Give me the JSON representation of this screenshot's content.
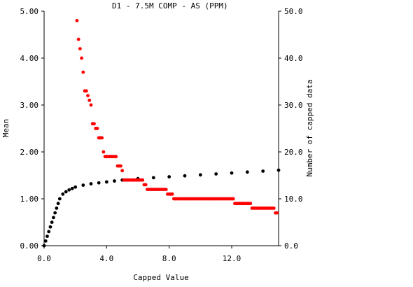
{
  "chart_data": {
    "type": "scatter",
    "title": "D1 - 7.5M COMP - AS (PPM)",
    "xlabel": "Capped Value",
    "ylabel": "Mean",
    "y2label": "Number of capped data",
    "xlim": [
      0,
      15
    ],
    "ylim": [
      0,
      5
    ],
    "y2lim": [
      0,
      50
    ],
    "xticks": [
      0,
      4,
      8,
      12
    ],
    "xtick_labels": [
      "0.0",
      "4.0",
      "8.0",
      "12.0"
    ],
    "yticks": [
      0,
      1,
      2,
      3,
      4,
      5
    ],
    "ytick_labels": [
      "0.00",
      "1.00",
      "2.00",
      "3.00",
      "4.00",
      "5.00"
    ],
    "y2ticks": [
      0,
      10,
      20,
      30,
      40,
      50
    ],
    "y2tick_labels": [
      "0.0",
      "10.0",
      "20.0",
      "30.0",
      "40.0",
      "50.0"
    ],
    "grid": false,
    "series": [
      {
        "axis": "left",
        "color": "#000000",
        "x": [
          0.0,
          0.1,
          0.2,
          0.3,
          0.4,
          0.5,
          0.6,
          0.7,
          0.8,
          0.9,
          1.0,
          1.2,
          1.4,
          1.6,
          1.8,
          2.0,
          2.5,
          3.0,
          3.5,
          4.0,
          4.5,
          5.0,
          6.0,
          7.0,
          8.0,
          9.0,
          10.0,
          11.0,
          12.0,
          13.0,
          14.0,
          15.0
        ],
        "y": [
          0.0,
          0.1,
          0.2,
          0.3,
          0.4,
          0.5,
          0.6,
          0.7,
          0.8,
          0.9,
          1.0,
          1.1,
          1.15,
          1.19,
          1.22,
          1.25,
          1.29,
          1.32,
          1.34,
          1.36,
          1.38,
          1.4,
          1.43,
          1.45,
          1.47,
          1.49,
          1.51,
          1.53,
          1.55,
          1.57,
          1.59,
          1.61
        ]
      },
      {
        "axis": "right",
        "color": "#ff0000",
        "x": [
          2.1,
          2.2,
          2.3,
          2.4,
          2.5,
          2.6,
          2.7,
          2.8,
          2.9,
          3.0,
          3.1,
          3.2,
          3.3,
          3.4,
          3.5,
          3.6,
          3.7,
          3.8,
          3.9,
          4.0,
          4.1,
          4.2,
          4.3,
          4.4,
          4.5,
          4.6,
          4.7,
          4.8,
          4.9,
          5.0,
          5.1,
          5.2,
          5.3,
          5.4,
          5.5,
          5.6,
          5.7,
          5.8,
          5.9,
          6.0,
          6.1,
          6.2,
          6.3,
          6.4,
          6.5,
          6.6,
          6.7,
          6.8,
          6.9,
          7.0,
          7.1,
          7.2,
          7.3,
          7.4,
          7.5,
          7.6,
          7.7,
          7.8,
          7.9,
          8.0,
          8.1,
          8.2,
          8.3,
          8.4,
          8.5,
          8.6,
          8.7,
          8.8,
          8.9,
          9.0,
          9.1,
          9.2,
          9.3,
          9.4,
          9.5,
          9.6,
          9.7,
          9.8,
          9.9,
          10.0,
          10.1,
          10.2,
          10.3,
          10.4,
          10.5,
          10.6,
          10.7,
          10.8,
          10.9,
          11.0,
          11.1,
          11.2,
          11.3,
          11.4,
          11.5,
          11.6,
          11.7,
          11.8,
          11.9,
          12.0,
          12.1,
          12.2,
          12.3,
          12.4,
          12.5,
          12.6,
          12.7,
          12.8,
          12.9,
          13.0,
          13.1,
          13.2,
          13.3,
          13.4,
          13.5,
          13.6,
          13.7,
          13.8,
          13.9,
          14.0,
          14.1,
          14.2,
          14.3,
          14.4,
          14.5,
          14.6,
          14.7,
          14.8,
          14.9
        ],
        "y": [
          48,
          44,
          42,
          40,
          37,
          33,
          33,
          32,
          31,
          30,
          26,
          26,
          25,
          25,
          23,
          23,
          23,
          20,
          19,
          19,
          19,
          19,
          19,
          19,
          19,
          19,
          17,
          17,
          17,
          16,
          14,
          14,
          14,
          14,
          14,
          14,
          14,
          14,
          14,
          14,
          14,
          14,
          14,
          13,
          13,
          12,
          12,
          12,
          12,
          12,
          12,
          12,
          12,
          12,
          12,
          12,
          12,
          12,
          11,
          11,
          11,
          11,
          10,
          10,
          10,
          10,
          10,
          10,
          10,
          10,
          10,
          10,
          10,
          10,
          10,
          10,
          10,
          10,
          10,
          10,
          10,
          10,
          10,
          10,
          10,
          10,
          10,
          10,
          10,
          10,
          10,
          10,
          10,
          10,
          10,
          10,
          10,
          10,
          10,
          10,
          10,
          9,
          9,
          9,
          9,
          9,
          9,
          9,
          9,
          9,
          9,
          9,
          8,
          8,
          8,
          8,
          8,
          8,
          8,
          8,
          8,
          8,
          8,
          8,
          8,
          8,
          8,
          7,
          7
        ]
      }
    ]
  }
}
